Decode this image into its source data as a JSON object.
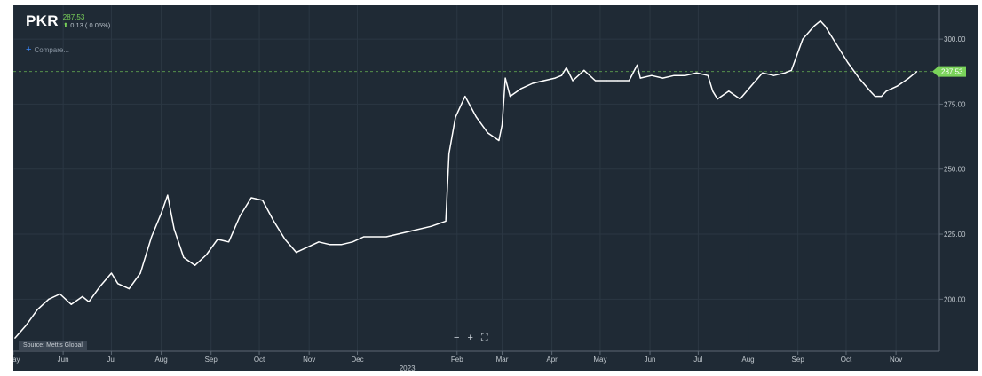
{
  "header": {
    "symbol": "PKR",
    "last_price": "287.53",
    "change_text": "0.13 ( 0.05%)",
    "change_icon": "up-arrow-icon"
  },
  "compare": {
    "label": "Compare...",
    "icon": "plus-icon"
  },
  "source_label": "Source: Mettis Global",
  "toolbar": {
    "zoom_out": "−",
    "zoom_in": "+",
    "fullscreen": "⛶"
  },
  "colors": {
    "background": "#1f2a35",
    "line": "#ffffff",
    "price_tag": "#7ad35a",
    "grid": "#2b3743",
    "dashed_ref": "#7ad35a"
  },
  "chart_data": {
    "type": "line",
    "title": "",
    "series": [
      {
        "values": [
          [
            "2022-05-02",
            185
          ],
          [
            "2022-05-09",
            190
          ],
          [
            "2022-05-16",
            196
          ],
          [
            "2022-05-23",
            200
          ],
          [
            "2022-05-30",
            202
          ],
          [
            "2022-06-06",
            198
          ],
          [
            "2022-06-13",
            201
          ],
          [
            "2022-06-17",
            199
          ],
          [
            "2022-06-24",
            205
          ],
          [
            "2022-07-01",
            210
          ],
          [
            "2022-07-05",
            206
          ],
          [
            "2022-07-12",
            204
          ],
          [
            "2022-07-19",
            210
          ],
          [
            "2022-07-26",
            224
          ],
          [
            "2022-08-01",
            233
          ],
          [
            "2022-08-05",
            240
          ],
          [
            "2022-08-09",
            227
          ],
          [
            "2022-08-15",
            216
          ],
          [
            "2022-08-22",
            213
          ],
          [
            "2022-08-29",
            217
          ],
          [
            "2022-09-05",
            223
          ],
          [
            "2022-09-12",
            222
          ],
          [
            "2022-09-19",
            232
          ],
          [
            "2022-09-26",
            239
          ],
          [
            "2022-10-03",
            238
          ],
          [
            "2022-10-10",
            230
          ],
          [
            "2022-10-17",
            223
          ],
          [
            "2022-10-24",
            218
          ],
          [
            "2022-10-31",
            220
          ],
          [
            "2022-11-07",
            222
          ],
          [
            "2022-11-14",
            221
          ],
          [
            "2022-11-21",
            221
          ],
          [
            "2022-11-28",
            222
          ],
          [
            "2022-12-05",
            224
          ],
          [
            "2022-12-19",
            224
          ],
          [
            "2023-01-02",
            226
          ],
          [
            "2023-01-16",
            228
          ],
          [
            "2023-01-25",
            230
          ],
          [
            "2023-01-27",
            256
          ],
          [
            "2023-01-31",
            270
          ],
          [
            "2023-02-06",
            278
          ],
          [
            "2023-02-13",
            270
          ],
          [
            "2023-02-20",
            264
          ],
          [
            "2023-02-27",
            261
          ],
          [
            "2023-03-01",
            267
          ],
          [
            "2023-03-03",
            285
          ],
          [
            "2023-03-06",
            278
          ],
          [
            "2023-03-13",
            281
          ],
          [
            "2023-03-20",
            283
          ],
          [
            "2023-03-27",
            284
          ],
          [
            "2023-04-03",
            285
          ],
          [
            "2023-04-07",
            286
          ],
          [
            "2023-04-10",
            289
          ],
          [
            "2023-04-14",
            284
          ],
          [
            "2023-04-21",
            288
          ],
          [
            "2023-04-28",
            284
          ],
          [
            "2023-05-05",
            284
          ],
          [
            "2023-05-12",
            284
          ],
          [
            "2023-05-19",
            284
          ],
          [
            "2023-05-24",
            290
          ],
          [
            "2023-05-26",
            285
          ],
          [
            "2023-06-02",
            286
          ],
          [
            "2023-06-09",
            285
          ],
          [
            "2023-06-16",
            286
          ],
          [
            "2023-06-23",
            286
          ],
          [
            "2023-06-30",
            287
          ],
          [
            "2023-07-07",
            286
          ],
          [
            "2023-07-10",
            280
          ],
          [
            "2023-07-13",
            277
          ],
          [
            "2023-07-20",
            280
          ],
          [
            "2023-07-27",
            277
          ],
          [
            "2023-08-03",
            282
          ],
          [
            "2023-08-10",
            287
          ],
          [
            "2023-08-17",
            286
          ],
          [
            "2023-08-24",
            287
          ],
          [
            "2023-08-28",
            288
          ],
          [
            "2023-09-04",
            300
          ],
          [
            "2023-09-11",
            305
          ],
          [
            "2023-09-15",
            307
          ],
          [
            "2023-09-18",
            305
          ],
          [
            "2023-09-25",
            298
          ],
          [
            "2023-10-02",
            291
          ],
          [
            "2023-10-09",
            285
          ],
          [
            "2023-10-16",
            280
          ],
          [
            "2023-10-19",
            278
          ],
          [
            "2023-10-23",
            278
          ],
          [
            "2023-10-26",
            280
          ],
          [
            "2023-11-02",
            282
          ],
          [
            "2023-11-09",
            285
          ],
          [
            "2023-11-14",
            287.53
          ]
        ]
      }
    ],
    "x_ticks": [
      [
        "2022-05-01",
        "May"
      ],
      [
        "2022-06-01",
        "Jun"
      ],
      [
        "2022-07-01",
        "Jul"
      ],
      [
        "2022-08-01",
        "Aug"
      ],
      [
        "2022-09-01",
        "Sep"
      ],
      [
        "2022-10-01",
        "Oct"
      ],
      [
        "2022-11-01",
        "Nov"
      ],
      [
        "2022-12-01",
        "Dec"
      ],
      [
        "2023-02-01",
        "Feb"
      ],
      [
        "2023-03-01",
        "Mar"
      ],
      [
        "2023-04-01",
        "Apr"
      ],
      [
        "2023-05-01",
        "May"
      ],
      [
        "2023-06-01",
        "Jun"
      ],
      [
        "2023-07-01",
        "Jul"
      ],
      [
        "2023-08-01",
        "Aug"
      ],
      [
        "2023-09-01",
        "Sep"
      ],
      [
        "2023-10-01",
        "Oct"
      ],
      [
        "2023-11-01",
        "Nov"
      ]
    ],
    "year_ticks": [
      [
        "2023-01-01",
        "2023"
      ]
    ],
    "y_ticks": [
      [
        "200",
        "200.00"
      ],
      [
        "225",
        "225.00"
      ],
      [
        "250",
        "250.00"
      ],
      [
        "275",
        "275.00"
      ],
      [
        "300",
        "300.00"
      ]
    ],
    "xlim": [
      "2022-05-01",
      "2023-11-28"
    ],
    "ylim": [
      180,
      313
    ],
    "reference_line": {
      "value": 287.53,
      "label": "287.53",
      "style": "dashed"
    },
    "grid": true,
    "y_axis_side": "right"
  }
}
